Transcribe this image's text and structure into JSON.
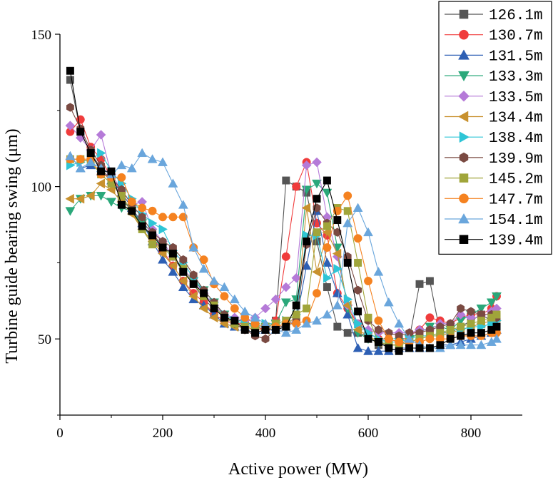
{
  "chart_data": {
    "type": "line",
    "xlabel": "Active power (MW)",
    "ylabel": "Turbine guide bearing swing (μm)",
    "xlim": [
      0,
      900
    ],
    "ylim": [
      25,
      150
    ],
    "x_ticks": [
      "0",
      "200",
      "400",
      "600",
      "800"
    ],
    "y_ticks": [
      "50",
      "100",
      "150"
    ],
    "grid": false,
    "legend_position": "top-right",
    "series": [
      {
        "name": "126.1m",
        "color": "#555555",
        "marker": "square",
        "x": [
          20,
          40,
          60,
          80,
          100,
          120,
          140,
          160,
          180,
          200,
          220,
          240,
          260,
          280,
          300,
          320,
          340,
          360,
          380,
          400,
          420,
          440,
          460,
          480,
          500,
          520,
          540,
          560,
          580,
          600,
          620,
          640,
          660,
          680,
          700,
          720,
          740,
          760,
          780,
          800,
          820,
          840,
          850
        ],
        "y": [
          135,
          118,
          111,
          106,
          102,
          96,
          92,
          88,
          85,
          80,
          77,
          72,
          68,
          63,
          60,
          57,
          56,
          56,
          54,
          53,
          56,
          102,
          100,
          98,
          82,
          67,
          54,
          52,
          52,
          51,
          48,
          48,
          48,
          50,
          68,
          69,
          52,
          52,
          54,
          56,
          58,
          56,
          54
        ]
      },
      {
        "name": "130.7m",
        "color": "#f03c3c",
        "marker": "circle",
        "x": [
          20,
          40,
          60,
          80,
          100,
          120,
          140,
          160,
          180,
          200,
          220,
          240,
          260,
          280,
          300,
          320,
          340,
          360,
          380,
          400,
          420,
          440,
          460,
          480,
          500,
          520,
          540,
          560,
          580,
          600,
          620,
          640,
          660,
          680,
          700,
          720,
          740,
          760,
          780,
          800,
          820,
          840,
          850
        ],
        "y": [
          118,
          122,
          113,
          109,
          103,
          98,
          93,
          88,
          83,
          79,
          74,
          69,
          65,
          62,
          58,
          56,
          55,
          55,
          54,
          53,
          56,
          77,
          100,
          108,
          88,
          84,
          65,
          60,
          55,
          52,
          50,
          50,
          49,
          51,
          53,
          57,
          56,
          55,
          57,
          58,
          58,
          60,
          64
        ]
      },
      {
        "name": "131.5m",
        "color": "#2d5fb4",
        "marker": "triangle-up",
        "x": [
          20,
          40,
          60,
          80,
          100,
          120,
          140,
          160,
          180,
          200,
          220,
          240,
          260,
          280,
          300,
          320,
          340,
          360,
          380,
          400,
          420,
          440,
          460,
          480,
          500,
          520,
          540,
          560,
          580,
          600,
          620,
          640,
          660,
          680,
          700,
          720,
          740,
          760,
          780,
          800,
          820,
          840,
          850
        ],
        "y": [
          110,
          106,
          107,
          105,
          102,
          98,
          93,
          88,
          82,
          76,
          72,
          67,
          63,
          61,
          58,
          55,
          54,
          54,
          53,
          53,
          54,
          54,
          56,
          74,
          92,
          75,
          65,
          58,
          47,
          46,
          46,
          46,
          47,
          47,
          47,
          47,
          48,
          48,
          49,
          50,
          51,
          52,
          53
        ]
      },
      {
        "name": "133.3m",
        "color": "#2aa87a",
        "marker": "triangle-down",
        "x": [
          20,
          40,
          60,
          80,
          100,
          120,
          140,
          160,
          180,
          200,
          220,
          240,
          260,
          280,
          300,
          320,
          340,
          360,
          380,
          400,
          420,
          440,
          460,
          480,
          500,
          520,
          540,
          560,
          580,
          600,
          620,
          640,
          660,
          680,
          700,
          720,
          740,
          760,
          780,
          800,
          820,
          840,
          850
        ],
        "y": [
          92,
          96,
          97,
          97,
          95,
          93,
          92,
          88,
          83,
          80,
          77,
          73,
          69,
          66,
          62,
          58,
          56,
          55,
          54,
          54,
          55,
          62,
          63,
          99,
          101,
          98,
          80,
          60,
          52,
          50,
          49,
          49,
          49,
          50,
          52,
          54,
          54,
          53,
          56,
          58,
          60,
          62,
          64
        ]
      },
      {
        "name": "133.5m",
        "color": "#b57ad8",
        "marker": "diamond",
        "x": [
          20,
          40,
          60,
          80,
          100,
          120,
          140,
          160,
          180,
          200,
          220,
          240,
          260,
          280,
          300,
          320,
          340,
          360,
          380,
          400,
          420,
          440,
          460,
          480,
          500,
          520,
          540,
          560,
          580,
          600,
          620,
          640,
          660,
          680,
          700,
          720,
          740,
          760,
          780,
          800,
          820,
          840,
          850
        ],
        "y": [
          120,
          116,
          112,
          117,
          104,
          99,
          94,
          95,
          86,
          82,
          77,
          73,
          69,
          65,
          61,
          58,
          57,
          56,
          57,
          60,
          63,
          67,
          70,
          107,
          108,
          90,
          77,
          61,
          55,
          53,
          52,
          52,
          52,
          52,
          53,
          53,
          55,
          55,
          58,
          57,
          57,
          59,
          60
        ]
      },
      {
        "name": "134.4m",
        "color": "#c8912e",
        "marker": "triangle-left",
        "x": [
          20,
          40,
          60,
          80,
          100,
          120,
          140,
          160,
          180,
          200,
          220,
          240,
          260,
          280,
          300,
          320,
          340,
          360,
          380,
          400,
          420,
          440,
          460,
          480,
          500,
          520,
          540,
          560,
          580,
          600,
          620,
          640,
          660,
          680,
          700,
          720,
          740,
          760,
          780,
          800,
          820,
          840,
          850
        ],
        "y": [
          96,
          96,
          97,
          101,
          99,
          95,
          91,
          86,
          82,
          78,
          74,
          69,
          64,
          60,
          57,
          55,
          54,
          54,
          53,
          53,
          54,
          55,
          57,
          93,
          72,
          85,
          78,
          61,
          53,
          51,
          49,
          48,
          48,
          49,
          50,
          51,
          51,
          52,
          53,
          54,
          55,
          56,
          57
        ]
      },
      {
        "name": "138.4m",
        "color": "#2ec5d6",
        "marker": "triangle-right",
        "x": [
          20,
          40,
          60,
          80,
          100,
          120,
          140,
          160,
          180,
          200,
          220,
          240,
          260,
          280,
          300,
          320,
          340,
          360,
          380,
          400,
          420,
          440,
          460,
          480,
          500,
          520,
          540,
          560,
          580,
          600,
          620,
          640,
          660,
          680,
          700,
          720,
          740,
          760,
          780,
          800,
          820,
          840,
          850
        ],
        "y": [
          107,
          108,
          109,
          111,
          105,
          101,
          96,
          91,
          88,
          86,
          79,
          75,
          70,
          66,
          62,
          58,
          56,
          55,
          54,
          55,
          55,
          56,
          58,
          84,
          84,
          70,
          73,
          63,
          55,
          52,
          50,
          49,
          49,
          50,
          51,
          51,
          52,
          53,
          53,
          54,
          54,
          55,
          56
        ]
      },
      {
        "name": "139.9m",
        "color": "#7a4a42",
        "marker": "hexagon",
        "x": [
          20,
          40,
          60,
          80,
          100,
          120,
          140,
          160,
          180,
          200,
          220,
          240,
          260,
          280,
          300,
          320,
          340,
          360,
          380,
          400,
          420,
          440,
          460,
          480,
          500,
          520,
          540,
          560,
          580,
          600,
          620,
          640,
          660,
          680,
          700,
          720,
          740,
          760,
          780,
          800,
          820,
          840,
          850
        ],
        "y": [
          126,
          119,
          112,
          107,
          103,
          99,
          94,
          90,
          85,
          82,
          80,
          76,
          71,
          66,
          62,
          58,
          55,
          53,
          51,
          50,
          53,
          55,
          56,
          81,
          93,
          88,
          85,
          77,
          66,
          56,
          53,
          52,
          51,
          52,
          52,
          53,
          54,
          55,
          60,
          59,
          58,
          58,
          57
        ]
      },
      {
        "name": "145.2m",
        "color": "#a0a53a",
        "marker": "square",
        "x": [
          20,
          40,
          60,
          80,
          100,
          120,
          140,
          160,
          180,
          200,
          220,
          240,
          260,
          280,
          300,
          320,
          340,
          360,
          380,
          400,
          420,
          440,
          460,
          480,
          500,
          520,
          540,
          560,
          580,
          600,
          620,
          640,
          660,
          680,
          700,
          720,
          740,
          760,
          780,
          800,
          820,
          840,
          850
        ],
        "y": [
          109,
          109,
          108,
          104,
          101,
          97,
          92,
          86,
          81,
          80,
          77,
          73,
          68,
          64,
          61,
          57,
          55,
          54,
          54,
          54,
          55,
          56,
          58,
          60,
          85,
          87,
          93,
          92,
          75,
          57,
          49,
          48,
          48,
          49,
          50,
          51,
          52,
          53,
          54,
          55,
          56,
          57,
          58
        ]
      },
      {
        "name": "147.7m",
        "color": "#f58220",
        "marker": "circle",
        "x": [
          20,
          40,
          60,
          80,
          100,
          120,
          140,
          160,
          180,
          200,
          220,
          240,
          260,
          280,
          300,
          320,
          340,
          360,
          380,
          400,
          420,
          440,
          460,
          480,
          500,
          520,
          540,
          560,
          580,
          600,
          620,
          640,
          660,
          680,
          700,
          720,
          740,
          760,
          780,
          800,
          820,
          840,
          850
        ],
        "y": [
          109,
          109,
          109,
          104,
          103,
          103,
          95,
          93,
          92,
          90,
          90,
          90,
          80,
          76,
          68,
          64,
          60,
          57,
          55,
          54,
          54,
          55,
          55,
          56,
          65,
          80,
          92,
          97,
          83,
          69,
          56,
          50,
          49,
          49,
          49,
          50,
          50,
          50,
          51,
          51,
          51,
          52,
          52
        ]
      },
      {
        "name": "154.1m",
        "color": "#6aa6dc",
        "marker": "triangle-up",
        "x": [
          20,
          40,
          60,
          80,
          100,
          120,
          140,
          160,
          180,
          200,
          220,
          240,
          260,
          280,
          300,
          320,
          340,
          360,
          380,
          400,
          420,
          440,
          460,
          480,
          500,
          520,
          540,
          560,
          580,
          600,
          620,
          640,
          660,
          680,
          700,
          720,
          740,
          760,
          780,
          800,
          820,
          840,
          850
        ],
        "y": [
          110,
          106,
          108,
          106,
          104,
          107,
          106,
          111,
          109,
          108,
          101,
          94,
          80,
          73,
          69,
          67,
          63,
          59,
          57,
          55,
          53,
          52,
          53,
          55,
          56,
          58,
          61,
          88,
          93,
          85,
          72,
          62,
          55,
          50,
          48,
          47,
          47,
          48,
          48,
          48,
          48,
          49,
          50
        ]
      },
      {
        "name": "139.4m",
        "color": "#000000",
        "marker": "square",
        "x": [
          20,
          40,
          60,
          80,
          100,
          120,
          140,
          160,
          180,
          200,
          220,
          240,
          260,
          280,
          300,
          320,
          340,
          360,
          380,
          400,
          420,
          440,
          460,
          480,
          500,
          520,
          540,
          560,
          580,
          600,
          620,
          640,
          660,
          680,
          700,
          720,
          740,
          760,
          780,
          800,
          820,
          840,
          850
        ],
        "y": [
          138,
          118,
          111,
          105,
          105,
          94,
          92,
          87,
          84,
          80,
          78,
          72,
          68,
          65,
          60,
          57,
          56,
          53,
          52,
          53,
          53,
          54,
          61,
          82,
          96,
          102,
          89,
          75,
          59,
          50,
          49,
          47,
          46,
          47,
          47,
          47,
          48,
          50,
          51,
          52,
          52,
          53,
          54
        ]
      }
    ]
  }
}
